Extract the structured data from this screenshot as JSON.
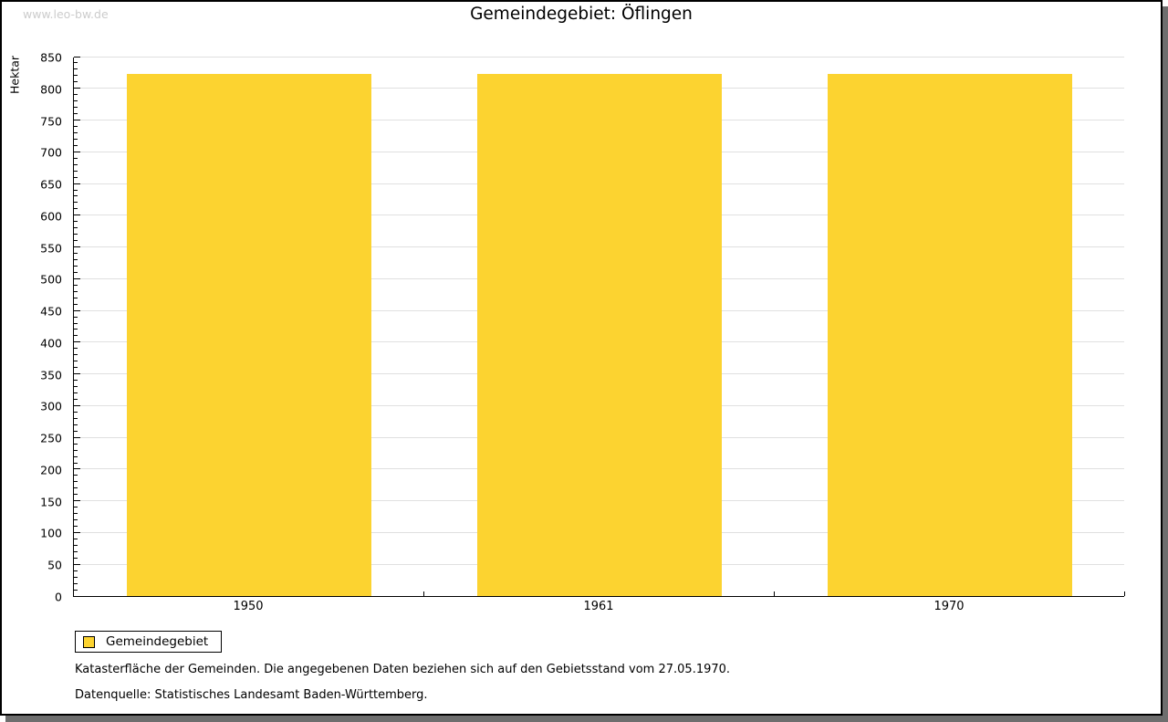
{
  "watermark": "www.leo-bw.de",
  "title": "Gemeindegebiet: Öflingen",
  "colors": {
    "bar": "#fcd330",
    "grid": "#e0e0e0",
    "axis": "#000000",
    "watermark": "#cccccc",
    "frame_shadow": "#6e6e6e"
  },
  "chart_data": {
    "type": "bar",
    "title": "Gemeindegebiet: Öflingen",
    "categories": [
      "1950",
      "1961",
      "1970"
    ],
    "series": [
      {
        "name": "Gemeindegebiet",
        "values": [
          822,
          822,
          822
        ]
      }
    ],
    "xlabel": "",
    "ylabel": "Hektar",
    "ylim": [
      0,
      850
    ],
    "ytick_step": 50,
    "ytick_minor_step": 10,
    "grid": true,
    "legend_position": "bottom-left"
  },
  "legend": {
    "items": [
      {
        "label": "Gemeindegebiet",
        "color": "#fcd330"
      }
    ]
  },
  "footnotes": [
    "Katasterfläche der Gemeinden. Die angegebenen Daten beziehen sich auf den Gebietsstand vom 27.05.1970.",
    "Datenquelle: Statistisches Landesamt Baden-Württemberg."
  ]
}
